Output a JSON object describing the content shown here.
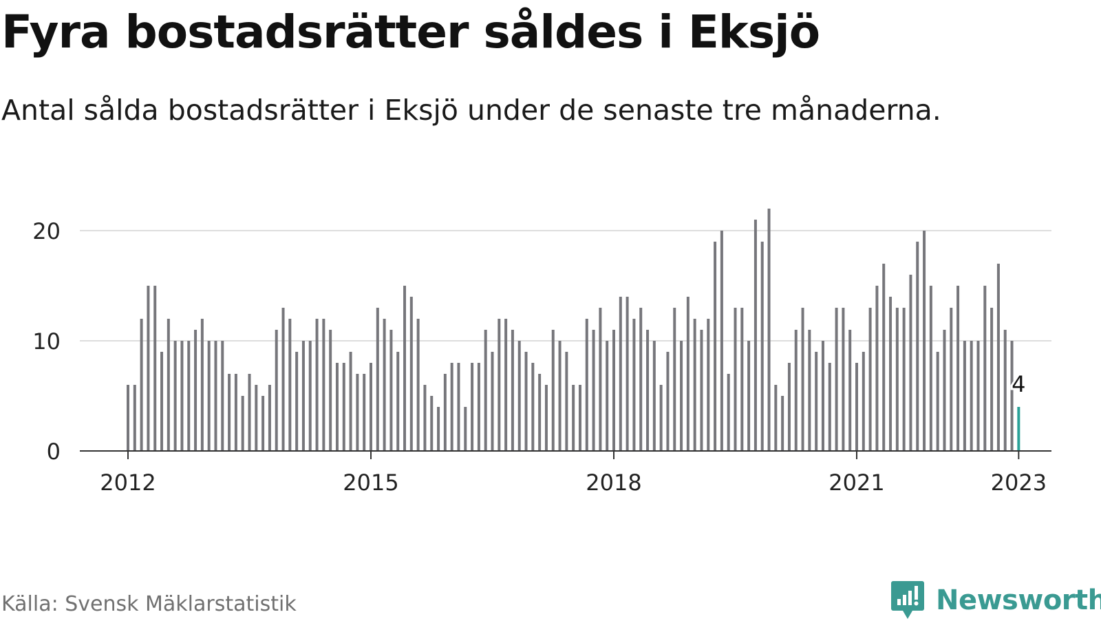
{
  "title": "Fyra bostadsrätter såldes i Eksjö",
  "subtitle": "Antal sålda bostadsrätter i Eksjö under de senaste tre månaderna.",
  "source": "Källa: Svensk Mäklarstatistik",
  "brand": {
    "name": "Newsworthy",
    "icon": "newsworthy-logo-icon"
  },
  "colors": {
    "bar": "#76767b",
    "highlight": "#2aa198",
    "grid": "#dddddd",
    "axis": "#333333",
    "text": "#222222",
    "brand": "#3a9a92"
  },
  "chart_data": {
    "type": "bar",
    "x_start": "2012-01",
    "x_ticks": [
      "2012",
      "2015",
      "2018",
      "2021",
      "2023"
    ],
    "y_ticks": [
      0,
      10,
      20
    ],
    "ylim": [
      0,
      22
    ],
    "grid": true,
    "values": [
      6,
      6,
      12,
      15,
      15,
      9,
      12,
      10,
      10,
      10,
      11,
      12,
      10,
      10,
      10,
      7,
      7,
      5,
      7,
      6,
      5,
      6,
      11,
      13,
      12,
      9,
      10,
      10,
      12,
      12,
      11,
      8,
      8,
      9,
      7,
      7,
      8,
      13,
      12,
      11,
      9,
      15,
      14,
      12,
      6,
      5,
      4,
      7,
      8,
      8,
      4,
      8,
      8,
      11,
      9,
      12,
      12,
      11,
      10,
      9,
      8,
      7,
      6,
      11,
      10,
      9,
      6,
      6,
      12,
      11,
      13,
      10,
      11,
      14,
      14,
      12,
      13,
      11,
      10,
      6,
      9,
      13,
      10,
      14,
      12,
      11,
      12,
      19,
      20,
      7,
      13,
      13,
      10,
      21,
      19,
      22,
      6,
      5,
      8,
      11,
      13,
      11,
      9,
      10,
      8,
      13,
      13,
      11,
      8,
      9,
      13,
      15,
      17,
      14,
      13,
      13,
      16,
      19,
      20,
      15,
      9,
      11,
      13,
      15,
      10,
      10,
      10,
      15,
      13,
      17,
      11,
      10,
      4
    ],
    "highlight": {
      "label": "4",
      "value": 4,
      "x": "2023-01"
    }
  }
}
